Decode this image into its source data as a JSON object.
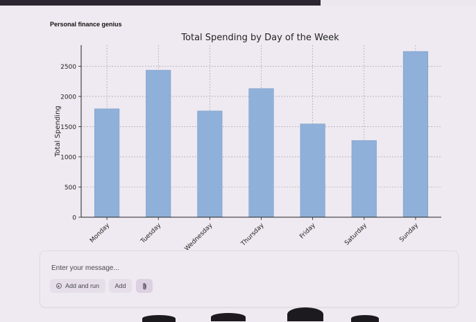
{
  "app": {
    "name": "Personal finance genius"
  },
  "composer": {
    "placeholder": "Enter your message...",
    "add_and_run_label": "Add and run",
    "add_label": "Add",
    "attach_icon": "paperclip-icon",
    "run_icon": "plus-circle-icon"
  },
  "chart_data": {
    "type": "bar",
    "title": "Total Spending by Day of the Week",
    "xlabel": "",
    "ylabel": "Total Spending",
    "categories": [
      "Monday",
      "Tuesday",
      "Wednesday",
      "Thursday",
      "Friday",
      "Saturday",
      "Sunday"
    ],
    "values": [
      1795,
      2435,
      1760,
      2130,
      1545,
      1270,
      2745
    ],
    "ylim": [
      0,
      2850
    ],
    "yticks": [
      0,
      500,
      1000,
      1500,
      2000,
      2500
    ],
    "grid": true,
    "bar_color": "#8fb0d9",
    "bar_edge_color": "#7d9fcc"
  }
}
